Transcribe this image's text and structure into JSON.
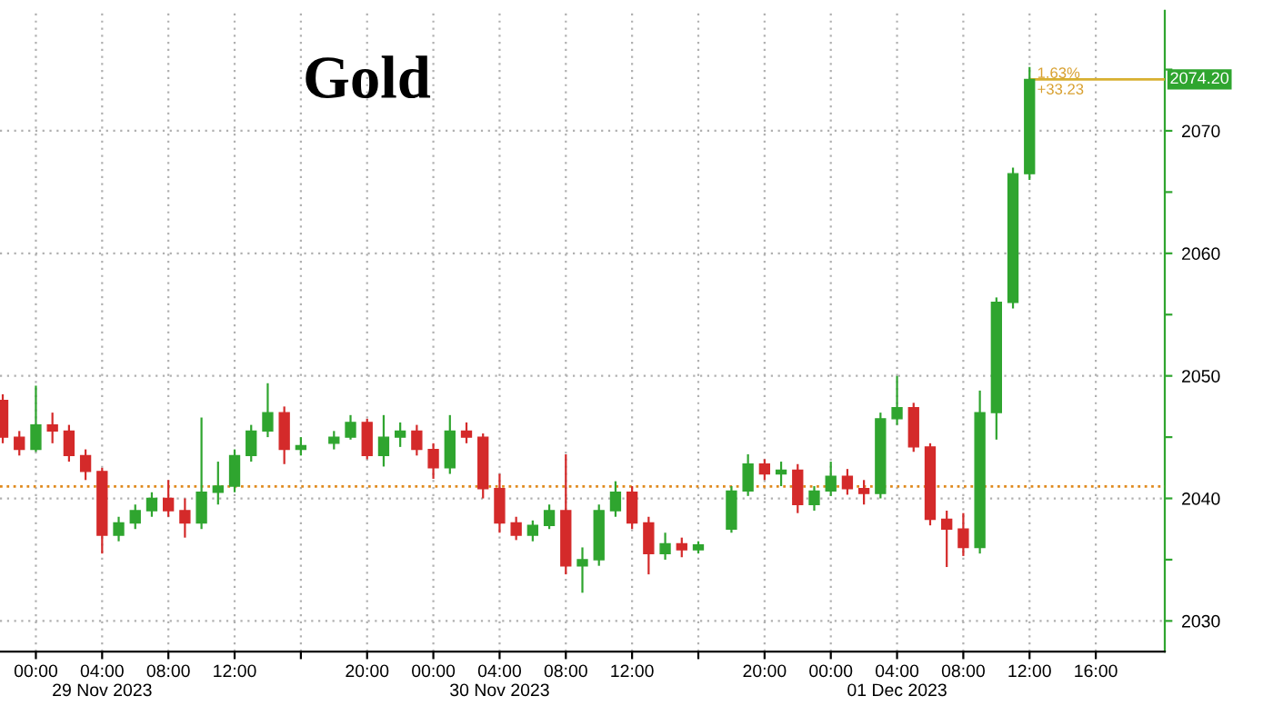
{
  "chart_data": {
    "type": "candlestick",
    "title": "Gold",
    "x": [
      "2023-11-28T22:00",
      "2023-11-28T23:00",
      "2023-11-29T00:00",
      "2023-11-29T01:00",
      "2023-11-29T02:00",
      "2023-11-29T03:00",
      "2023-11-29T04:00",
      "2023-11-29T05:00",
      "2023-11-29T06:00",
      "2023-11-29T07:00",
      "2023-11-29T08:00",
      "2023-11-29T09:00",
      "2023-11-29T10:00",
      "2023-11-29T11:00",
      "2023-11-29T12:00",
      "2023-11-29T13:00",
      "2023-11-29T14:00",
      "2023-11-29T15:00",
      "2023-11-29T16:00",
      "2023-11-29T18:00",
      "2023-11-29T19:00",
      "2023-11-29T20:00",
      "2023-11-29T21:00",
      "2023-11-29T22:00",
      "2023-11-29T23:00",
      "2023-11-30T00:00",
      "2023-11-30T01:00",
      "2023-11-30T02:00",
      "2023-11-30T03:00",
      "2023-11-30T04:00",
      "2023-11-30T05:00",
      "2023-11-30T06:00",
      "2023-11-30T07:00",
      "2023-11-30T08:00",
      "2023-11-30T09:00",
      "2023-11-30T10:00",
      "2023-11-30T11:00",
      "2023-11-30T12:00",
      "2023-11-30T13:00",
      "2023-11-30T14:00",
      "2023-11-30T15:00",
      "2023-11-30T16:00",
      "2023-11-30T18:00",
      "2023-11-30T19:00",
      "2023-11-30T20:00",
      "2023-11-30T21:00",
      "2023-11-30T22:00",
      "2023-11-30T23:00",
      "2023-12-01T00:00",
      "2023-12-01T01:00",
      "2023-12-01T02:00",
      "2023-12-01T03:00",
      "2023-12-01T04:00",
      "2023-12-01T05:00",
      "2023-12-01T06:00",
      "2023-12-01T07:00",
      "2023-12-01T08:00",
      "2023-12-01T09:00",
      "2023-12-01T10:00",
      "2023-12-01T11:00",
      "2023-12-01T12:00"
    ],
    "ohlc": [
      [
        2048,
        2048.5,
        2044.5,
        2045
      ],
      [
        2045,
        2045.5,
        2043.5,
        2044
      ],
      [
        2044,
        2049.2,
        2043.8,
        2046
      ],
      [
        2046,
        2047,
        2044.5,
        2045.5
      ],
      [
        2045.5,
        2046,
        2043,
        2043.5
      ],
      [
        2043.5,
        2044,
        2041.5,
        2042.2
      ],
      [
        2042.2,
        2042.5,
        2035.5,
        2037
      ],
      [
        2037,
        2038.5,
        2036.5,
        2038
      ],
      [
        2038,
        2039.5,
        2037.5,
        2039
      ],
      [
        2039,
        2040.5,
        2038.5,
        2040
      ],
      [
        2040,
        2041.5,
        2038.5,
        2039
      ],
      [
        2039,
        2040,
        2036.8,
        2038
      ],
      [
        2038,
        2046.6,
        2037.5,
        2040.5
      ],
      [
        2040.5,
        2043,
        2039.5,
        2041
      ],
      [
        2041,
        2044,
        2040.5,
        2043.5
      ],
      [
        2043.5,
        2046,
        2043,
        2045.5
      ],
      [
        2045.5,
        2049.4,
        2045,
        2047
      ],
      [
        2047,
        2047.5,
        2042.8,
        2044
      ],
      [
        2044,
        2045,
        2043.5,
        2044.3
      ],
      [
        2044.5,
        2045.5,
        2044,
        2045
      ],
      [
        2045,
        2046.8,
        2044.8,
        2046.2
      ],
      [
        2046.2,
        2046.5,
        2043.2,
        2043.5
      ],
      [
        2043.5,
        2046.8,
        2042.6,
        2045
      ],
      [
        2045,
        2046.2,
        2044.2,
        2045.5
      ],
      [
        2045.5,
        2046,
        2043.5,
        2044
      ],
      [
        2044,
        2044.5,
        2041.6,
        2042.5
      ],
      [
        2042.5,
        2046.8,
        2042,
        2045.5
      ],
      [
        2045.5,
        2046.2,
        2044.5,
        2045
      ],
      [
        2045,
        2045.3,
        2040,
        2040.8
      ],
      [
        2040.8,
        2042,
        2037.2,
        2038
      ],
      [
        2038,
        2038.5,
        2036.6,
        2037
      ],
      [
        2037,
        2038.2,
        2036.5,
        2037.8
      ],
      [
        2037.8,
        2039.5,
        2037.5,
        2039
      ],
      [
        2039,
        2043.6,
        2033.8,
        2034.5
      ],
      [
        2034.5,
        2036,
        2032.3,
        2035
      ],
      [
        2035,
        2039.5,
        2034.5,
        2039
      ],
      [
        2039,
        2041.4,
        2038.5,
        2040.5
      ],
      [
        2040.5,
        2041,
        2037.5,
        2038
      ],
      [
        2038,
        2038.5,
        2033.8,
        2035.5
      ],
      [
        2035.5,
        2037.2,
        2035,
        2036.3
      ],
      [
        2036.3,
        2036.8,
        2035.2,
        2035.8
      ],
      [
        2035.8,
        2036.5,
        2035.5,
        2036.2
      ],
      [
        2037.5,
        2041,
        2037.2,
        2040.6
      ],
      [
        2040.6,
        2043.6,
        2040.2,
        2042.8
      ],
      [
        2042.8,
        2043.2,
        2041.5,
        2042
      ],
      [
        2042,
        2043,
        2041,
        2042.3
      ],
      [
        2042.3,
        2042.8,
        2038.8,
        2039.5
      ],
      [
        2039.5,
        2041,
        2039,
        2040.6
      ],
      [
        2040.6,
        2043,
        2040.2,
        2041.8
      ],
      [
        2041.8,
        2042.4,
        2040.3,
        2040.8
      ],
      [
        2040.8,
        2041.5,
        2039.5,
        2040.4
      ],
      [
        2040.4,
        2047,
        2040,
        2046.5
      ],
      [
        2046.5,
        2050,
        2046,
        2047.4
      ],
      [
        2047.4,
        2047.8,
        2043.8,
        2044.2
      ],
      [
        2044.2,
        2044.5,
        2037.8,
        2038.3
      ],
      [
        2038.3,
        2039,
        2034.4,
        2037.5
      ],
      [
        2037.5,
        2038.8,
        2035.3,
        2036
      ],
      [
        2036,
        2048.8,
        2035.5,
        2047
      ],
      [
        2047,
        2056.4,
        2044.8,
        2056
      ],
      [
        2056,
        2067,
        2055.5,
        2066.5
      ],
      [
        2066.5,
        2075.2,
        2066,
        2074.2
      ]
    ],
    "xlim": [
      "2023-11-28T21:50",
      "2023-12-01T20:10"
    ],
    "xticks": [
      {
        "value": "2023-11-29T00:00",
        "label": "00:00"
      },
      {
        "value": "2023-11-29T04:00",
        "label": "04:00\n29 Nov 2023"
      },
      {
        "value": "2023-11-29T08:00",
        "label": "08:00"
      },
      {
        "value": "2023-11-29T12:00",
        "label": "12:00"
      },
      {
        "value": "2023-11-29T16:00",
        "label": null
      },
      {
        "value": "2023-11-29T20:00",
        "label": "20:00"
      },
      {
        "value": "2023-11-30T00:00",
        "label": "00:00"
      },
      {
        "value": "2023-11-30T04:00",
        "label": "04:00\n30 Nov 2023"
      },
      {
        "value": "2023-11-30T08:00",
        "label": "08:00"
      },
      {
        "value": "2023-11-30T12:00",
        "label": "12:00"
      },
      {
        "value": "2023-11-30T16:00",
        "label": null
      },
      {
        "value": "2023-11-30T20:00",
        "label": "20:00"
      },
      {
        "value": "2023-12-01T00:00",
        "label": "00:00"
      },
      {
        "value": "2023-12-01T04:00",
        "label": "04:00\n01 Dec 2023"
      },
      {
        "value": "2023-12-01T08:00",
        "label": "08:00"
      },
      {
        "value": "2023-12-01T12:00",
        "label": "12:00"
      },
      {
        "value": "2023-12-01T16:00",
        "label": "16:00"
      }
    ],
    "ylim": [
      2027.5,
      2079.8
    ],
    "yticks": [
      2030,
      {
        "value": 2035,
        "label": null
      },
      2040,
      {
        "value": 2045,
        "label": null
      },
      2050,
      {
        "value": 2055,
        "label": null
      },
      2060,
      {
        "value": 2065,
        "label": null
      },
      2070,
      {
        "value": 2075,
        "label": null
      }
    ],
    "grid": true,
    "ref_lines": [
      {
        "axis": "y",
        "value": 2040.97,
        "color": "#e08a1e",
        "line_style": "dotted"
      },
      {
        "axis": "y",
        "value": 2074.2,
        "label": "2074.20",
        "color": "#d8b030",
        "line_style": "solid"
      }
    ],
    "annotations": [
      {
        "text": "1.63%\n+33.23",
        "x": "2023-12-01T12:00",
        "y": 2075.2
      }
    ]
  }
}
